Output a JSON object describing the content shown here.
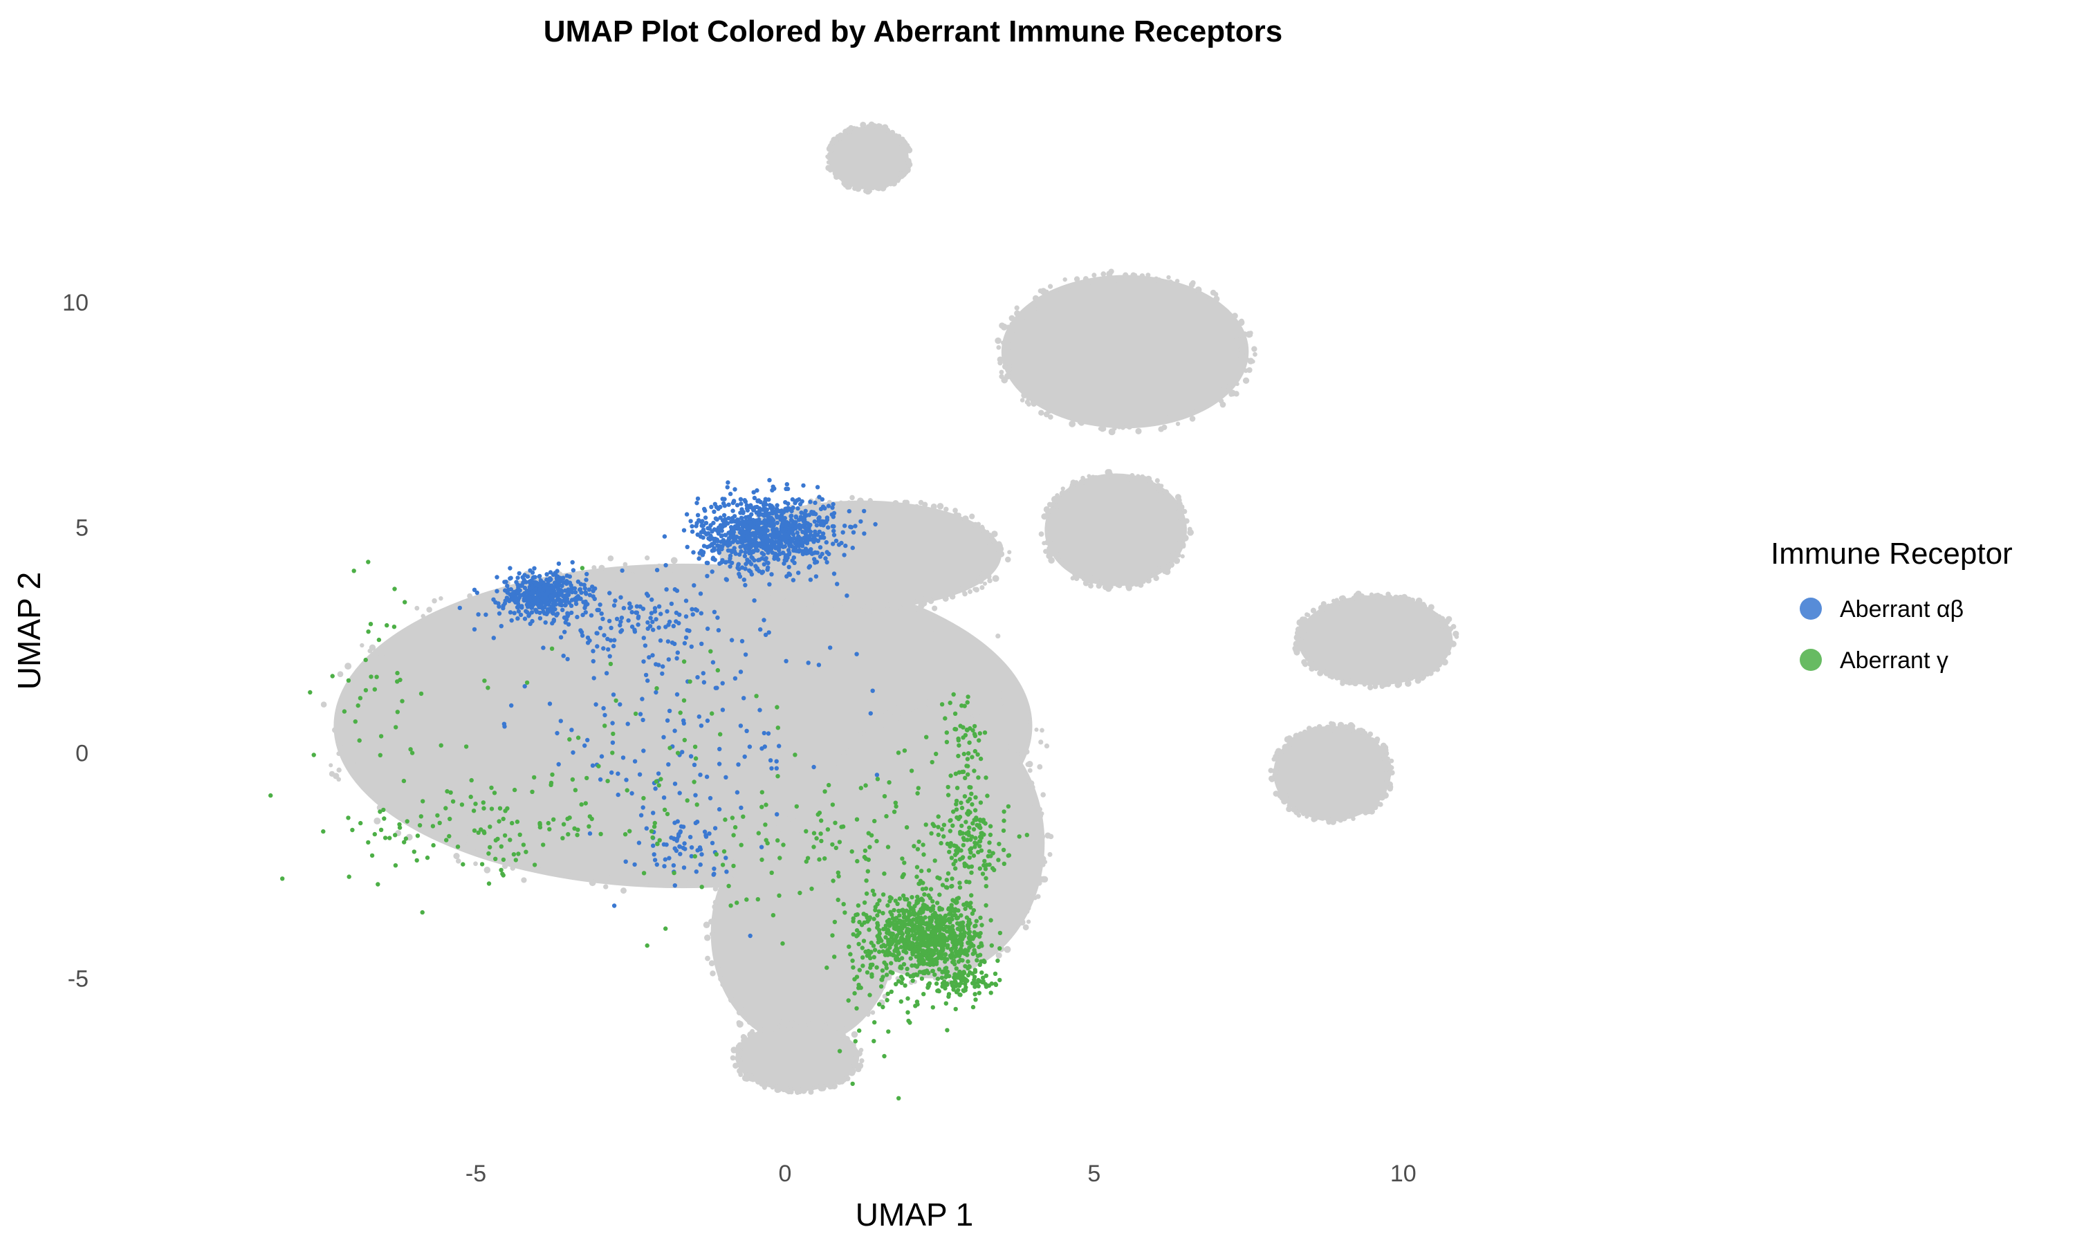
{
  "chart_data": {
    "type": "scatter",
    "title": "UMAP Plot Colored by Aberrant Immune Receptors",
    "xlabel": "UMAP 1",
    "ylabel": "UMAP 2",
    "xlim": [
      -9.9,
      14.6
    ],
    "ylim": [
      -8.0,
      14.4
    ],
    "x_ticks": [
      -5,
      0,
      5,
      10
    ],
    "y_ticks": [
      -5,
      0,
      5,
      10
    ],
    "grid": false,
    "legend": {
      "title": "Immune Receptor",
      "position": "right",
      "entries": [
        {
          "label": "Aberrant αβ",
          "color": "#3a78d1"
        },
        {
          "label": "Aberrant γ",
          "color": "#4caf46"
        }
      ]
    },
    "background_color": "#cfcfcf",
    "background_regions": [
      {
        "x": [
          -7.3,
          4.0
        ],
        "y": [
          -3.0,
          4.2
        ]
      },
      {
        "x": [
          -1.2,
          1.8
        ],
        "y": [
          -6.5,
          -1.5
        ]
      },
      {
        "x": [
          0.5,
          4.2
        ],
        "y": [
          -5.0,
          1.0
        ]
      },
      {
        "x": [
          -1.0,
          3.5
        ],
        "y": [
          3.2,
          5.6
        ]
      },
      {
        "x": [
          3.5,
          7.5
        ],
        "y": [
          7.2,
          10.6
        ]
      },
      {
        "x": [
          4.2,
          6.5
        ],
        "y": [
          3.7,
          6.2
        ]
      },
      {
        "x": [
          0.7,
          2.0
        ],
        "y": [
          12.5,
          13.9
        ]
      },
      {
        "x": [
          8.3,
          10.8
        ],
        "y": [
          1.5,
          3.5
        ]
      },
      {
        "x": [
          7.9,
          9.8
        ],
        "y": [
          -1.5,
          0.6
        ]
      },
      {
        "x": [
          -0.8,
          1.2
        ],
        "y": [
          -7.5,
          -6.0
        ]
      }
    ],
    "series": [
      {
        "name": "Aberrant αβ",
        "color": "#3a78d1",
        "clusters": [
          {
            "x": -0.3,
            "y": 4.9,
            "sx": 0.55,
            "sy": 0.4,
            "n": 900
          },
          {
            "x": -3.9,
            "y": 3.5,
            "sx": 0.35,
            "sy": 0.25,
            "n": 450
          },
          {
            "x": -2.5,
            "y": 2.9,
            "sx": 1.0,
            "sy": 0.4,
            "n": 120
          },
          {
            "x": -1.7,
            "y": 0.6,
            "sx": 1.3,
            "sy": 1.5,
            "n": 160
          },
          {
            "x": -1.7,
            "y": -2.1,
            "sx": 0.35,
            "sy": 0.3,
            "n": 55
          }
        ]
      },
      {
        "name": "Aberrant γ",
        "color": "#4caf46",
        "clusters": [
          {
            "x": 2.3,
            "y": -4.1,
            "sx": 0.45,
            "sy": 0.45,
            "n": 800
          },
          {
            "x": 3.0,
            "y": -2.0,
            "sx": 0.3,
            "sy": 0.5,
            "n": 150
          },
          {
            "x": 2.9,
            "y": -5.1,
            "sx": 0.25,
            "sy": 0.15,
            "n": 80
          },
          {
            "x": 1.6,
            "y": -4.8,
            "sx": 0.4,
            "sy": 1.0,
            "n": 90
          },
          {
            "x": 2.9,
            "y": 0.2,
            "sx": 0.2,
            "sy": 0.6,
            "n": 60
          },
          {
            "x": -5.0,
            "y": -1.8,
            "sx": 1.2,
            "sy": 0.5,
            "n": 90
          },
          {
            "x": -3.0,
            "y": -0.5,
            "sx": 2.0,
            "sy": 1.5,
            "n": 100
          },
          {
            "x": 1.0,
            "y": -2.0,
            "sx": 1.2,
            "sy": 0.8,
            "n": 110
          },
          {
            "x": -6.5,
            "y": 2.0,
            "sx": 0.5,
            "sy": 1.5,
            "n": 30
          }
        ]
      }
    ]
  }
}
